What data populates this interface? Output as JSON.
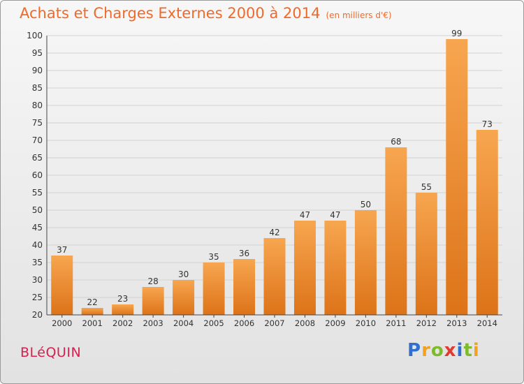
{
  "title": "Achats et Charges Externes 2000 à 2014",
  "subtitle": "(en milliers d'€)",
  "town": "BLéQUIN",
  "brand": {
    "letters": [
      "P",
      "r",
      "o",
      "x",
      "i",
      "t",
      "i"
    ],
    "colors": [
      "#2f6fd0",
      "#f2a21e",
      "#7dbb2a",
      "#e23a2e",
      "#2f6fd0",
      "#7dbb2a",
      "#f2a21e"
    ]
  },
  "chart_data": {
    "type": "bar",
    "title": "Achats et Charges Externes 2000 à 2014",
    "categories": [
      "2000",
      "2001",
      "2002",
      "2003",
      "2004",
      "2005",
      "2006",
      "2007",
      "2008",
      "2009",
      "2010",
      "2011",
      "2012",
      "2013",
      "2014"
    ],
    "values": [
      37,
      22,
      23,
      28,
      30,
      35,
      36,
      42,
      47,
      47,
      50,
      68,
      55,
      99,
      73
    ],
    "ylim": [
      20,
      100
    ],
    "yticks": [
      20,
      25,
      30,
      35,
      40,
      45,
      50,
      55,
      60,
      65,
      70,
      75,
      80,
      85,
      90,
      95,
      100
    ],
    "grid": true,
    "bar_color_top": "#f7a650",
    "bar_color_bottom": "#dd7318"
  }
}
